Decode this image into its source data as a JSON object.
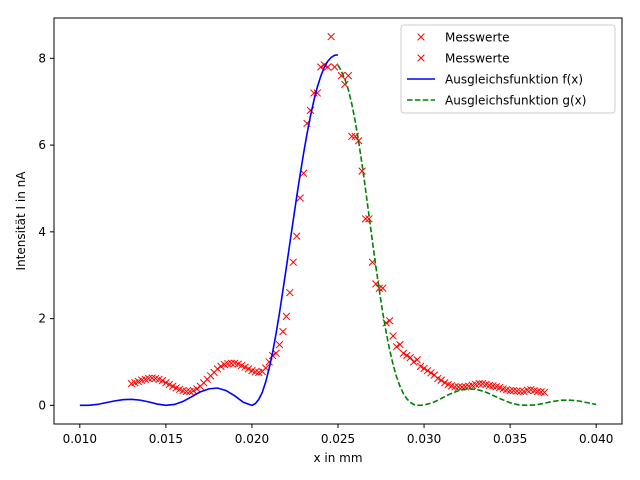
{
  "chart_data": {
    "type": "line",
    "title": "",
    "xlabel": "x in mm",
    "ylabel": "Intensität I in nA",
    "xlim": [
      0.0085,
      0.0415
    ],
    "ylim": [
      -0.43,
      8.93
    ],
    "xticks": [
      0.01,
      0.015,
      0.02,
      0.025,
      0.03,
      0.035,
      0.04
    ],
    "yticks": [
      0,
      2,
      4,
      6,
      8
    ],
    "grid": false,
    "legend_position": "top-right",
    "colors": {
      "measured": "#ff0000",
      "fit_f": "#0000ff",
      "fit_g": "#008000"
    },
    "legend": [
      {
        "label": "Messwerte",
        "style": "marker-x",
        "color": "#ff0000"
      },
      {
        "label": "Messwerte",
        "style": "marker-x",
        "color": "#ff0000"
      },
      {
        "label": "Ausgleichsfunktion f(x)",
        "style": "solid",
        "color": "#0000ff"
      },
      {
        "label": "Ausgleichsfunktion g(x)",
        "style": "dashed",
        "color": "#008000"
      }
    ],
    "series": [
      {
        "name": "Messwerte",
        "kind": "scatter",
        "color": "#ff0000",
        "x": [
          0.013,
          0.0132,
          0.0134,
          0.0136,
          0.0138,
          0.014,
          0.0142,
          0.0144,
          0.0146,
          0.0148,
          0.015,
          0.0152,
          0.0154,
          0.0156,
          0.0158,
          0.016,
          0.0162,
          0.0164,
          0.0166,
          0.0168,
          0.017,
          0.0172,
          0.0174,
          0.0176,
          0.0178,
          0.018,
          0.0182,
          0.0184,
          0.0186,
          0.0188,
          0.019,
          0.0192,
          0.0194,
          0.0196,
          0.0198,
          0.02,
          0.0202,
          0.0204,
          0.0206,
          0.0208,
          0.021,
          0.0212,
          0.0214,
          0.0216,
          0.0218,
          0.022,
          0.0222,
          0.0224,
          0.0226,
          0.0228,
          0.023,
          0.0232,
          0.0234,
          0.0236,
          0.0238,
          0.024,
          0.0242,
          0.0244,
          0.0246,
          0.0248
        ],
        "y": [
          0.5,
          0.52,
          0.55,
          0.58,
          0.6,
          0.62,
          0.63,
          0.62,
          0.6,
          0.57,
          0.52,
          0.48,
          0.44,
          0.4,
          0.37,
          0.34,
          0.32,
          0.32,
          0.34,
          0.38,
          0.44,
          0.52,
          0.6,
          0.68,
          0.76,
          0.84,
          0.9,
          0.94,
          0.96,
          0.97,
          0.97,
          0.95,
          0.92,
          0.88,
          0.84,
          0.8,
          0.77,
          0.76,
          0.78,
          0.86,
          1.0,
          1.15,
          1.2,
          1.4,
          1.7,
          2.05,
          2.6,
          3.3,
          3.9,
          4.78,
          5.35,
          6.5,
          6.8,
          7.2,
          7.2,
          7.8,
          7.85,
          7.8,
          8.5,
          7.8
        ]
      },
      {
        "name": "Messwerte",
        "kind": "scatter",
        "color": "#ff0000",
        "x": [
          0.0252,
          0.0254,
          0.0256,
          0.0258,
          0.026,
          0.0262,
          0.0264,
          0.0266,
          0.0268,
          0.027,
          0.0272,
          0.0274,
          0.0276,
          0.0278,
          0.028,
          0.0282,
          0.0284,
          0.0286,
          0.0288,
          0.029,
          0.0292,
          0.0294,
          0.0296,
          0.0298,
          0.03,
          0.0302,
          0.0304,
          0.0306,
          0.0308,
          0.031,
          0.0312,
          0.0314,
          0.0316,
          0.0318,
          0.032,
          0.0322,
          0.0324,
          0.0326,
          0.0328,
          0.033,
          0.0332,
          0.0334,
          0.0336,
          0.0338,
          0.034,
          0.0342,
          0.0344,
          0.0346,
          0.0348,
          0.035,
          0.0352,
          0.0354,
          0.0356,
          0.0358,
          0.036,
          0.0362,
          0.0364,
          0.0366,
          0.0368,
          0.037
        ],
        "y": [
          7.6,
          7.4,
          7.6,
          6.2,
          6.2,
          6.1,
          5.4,
          4.3,
          4.3,
          3.3,
          2.8,
          2.7,
          2.7,
          1.9,
          1.95,
          1.6,
          1.35,
          1.4,
          1.2,
          1.15,
          1.1,
          1.0,
          1.05,
          0.9,
          0.85,
          0.8,
          0.75,
          0.7,
          0.62,
          0.58,
          0.52,
          0.48,
          0.45,
          0.43,
          0.42,
          0.42,
          0.43,
          0.44,
          0.46,
          0.48,
          0.5,
          0.5,
          0.48,
          0.46,
          0.45,
          0.43,
          0.41,
          0.38,
          0.36,
          0.34,
          0.34,
          0.33,
          0.32,
          0.32,
          0.35,
          0.36,
          0.34,
          0.32,
          0.31,
          0.3
        ]
      },
      {
        "name": "Ausgleichsfunktion f(x)",
        "kind": "line",
        "style": "solid",
        "color": "#0000ff",
        "x": [
          0.01,
          0.0105,
          0.011,
          0.0115,
          0.012,
          0.0125,
          0.013,
          0.0135,
          0.014,
          0.0145,
          0.015,
          0.0155,
          0.016,
          0.0165,
          0.017,
          0.0175,
          0.018,
          0.0185,
          0.019,
          0.0195,
          0.02,
          0.0202,
          0.0204,
          0.0206,
          0.0208,
          0.021,
          0.0212,
          0.0214,
          0.0216,
          0.0218,
          0.022,
          0.0222,
          0.0224,
          0.0226,
          0.0228,
          0.023,
          0.0232,
          0.0234,
          0.0236,
          0.0238,
          0.024,
          0.0242,
          0.0244,
          0.0246,
          0.0248,
          0.025
        ],
        "y": [
          0.0,
          0.0,
          0.02,
          0.06,
          0.1,
          0.13,
          0.14,
          0.12,
          0.08,
          0.03,
          0.0,
          0.02,
          0.09,
          0.2,
          0.31,
          0.38,
          0.4,
          0.34,
          0.22,
          0.07,
          0.0,
          0.04,
          0.14,
          0.3,
          0.54,
          0.85,
          1.22,
          1.65,
          2.13,
          2.65,
          3.18,
          3.73,
          4.27,
          4.81,
          5.32,
          5.81,
          6.26,
          6.67,
          7.03,
          7.34,
          7.59,
          7.79,
          7.93,
          8.02,
          8.07,
          8.08
        ]
      },
      {
        "name": "Ausgleichsfunktion g(x)",
        "kind": "line",
        "style": "dashed",
        "color": "#008000",
        "x": [
          0.025,
          0.0252,
          0.0254,
          0.0256,
          0.0258,
          0.026,
          0.0262,
          0.0264,
          0.0266,
          0.0268,
          0.027,
          0.0272,
          0.0274,
          0.0276,
          0.0278,
          0.028,
          0.0282,
          0.0284,
          0.0286,
          0.0288,
          0.029,
          0.0292,
          0.0294,
          0.0296,
          0.0298,
          0.03,
          0.0305,
          0.031,
          0.0315,
          0.032,
          0.0325,
          0.033,
          0.0335,
          0.034,
          0.0345,
          0.035,
          0.0355,
          0.036,
          0.0365,
          0.037,
          0.0375,
          0.038,
          0.0385,
          0.039,
          0.0395,
          0.04
        ],
        "y": [
          7.85,
          7.7,
          7.52,
          7.28,
          6.95,
          6.55,
          6.08,
          5.55,
          4.98,
          4.38,
          3.78,
          3.2,
          2.65,
          2.14,
          1.68,
          1.28,
          0.94,
          0.66,
          0.44,
          0.27,
          0.15,
          0.07,
          0.02,
          0.0,
          0.0,
          0.01,
          0.06,
          0.16,
          0.26,
          0.34,
          0.38,
          0.37,
          0.32,
          0.23,
          0.14,
          0.06,
          0.01,
          0.0,
          0.01,
          0.05,
          0.09,
          0.12,
          0.12,
          0.1,
          0.06,
          0.02
        ]
      }
    ]
  }
}
